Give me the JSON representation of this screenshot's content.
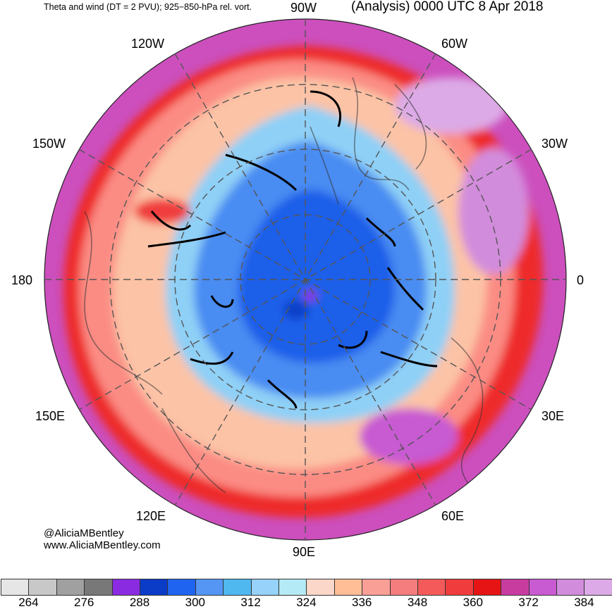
{
  "header": {
    "left_title": "Theta and wind (DT = 2 PVU); 925−850-hPa rel. vort.",
    "right_title": "(Analysis) 0000 UTC 8 Apr 2018"
  },
  "longitude_labels": {
    "lon_90w": "90W",
    "lon_60w": "60W",
    "lon_120w": "120W",
    "lon_150w": "150W",
    "lon_30w": "30W",
    "lon_180": "180",
    "lon_0": "0",
    "lon_150e": "150E",
    "lon_30e": "30E",
    "lon_120e": "120E",
    "lon_60e": "60E",
    "lon_90e": "90E"
  },
  "credits": {
    "handle": "@AliciaMBentley",
    "website": "www.AliciaMBentley.com"
  },
  "colorbar": {
    "colors": [
      "#e6e6e6",
      "#c8c8c8",
      "#a0a0a0",
      "#787878",
      "#8a2be2",
      "#0b3cc8",
      "#1e64f0",
      "#5596f5",
      "#4fb8ef",
      "#96d2fa",
      "#b4eaf5",
      "#fad7c8",
      "#ffbe96",
      "#fa9f96",
      "#f57d7d",
      "#f55a5a",
      "#f03c3c",
      "#e61414",
      "#c83ca0",
      "#c85ad2",
      "#d28cdc",
      "#dcaae6"
    ],
    "tick_labels": [
      "264",
      "276",
      "288",
      "300",
      "312",
      "324",
      "336",
      "348",
      "360",
      "372",
      "384"
    ]
  },
  "map": {
    "outer_color": "#cc4fbd",
    "ring_red_color": "#ee2a2a",
    "ring_salmon_color": "#fb8c84",
    "ring_peach_color": "#fcc3a6",
    "ring_lightblue_color": "#8fd0f6",
    "ring_blue_color": "#4a8cf2",
    "core_color": "#1d5fe9",
    "coast_color": "#444444",
    "contour_color": "#000000"
  }
}
